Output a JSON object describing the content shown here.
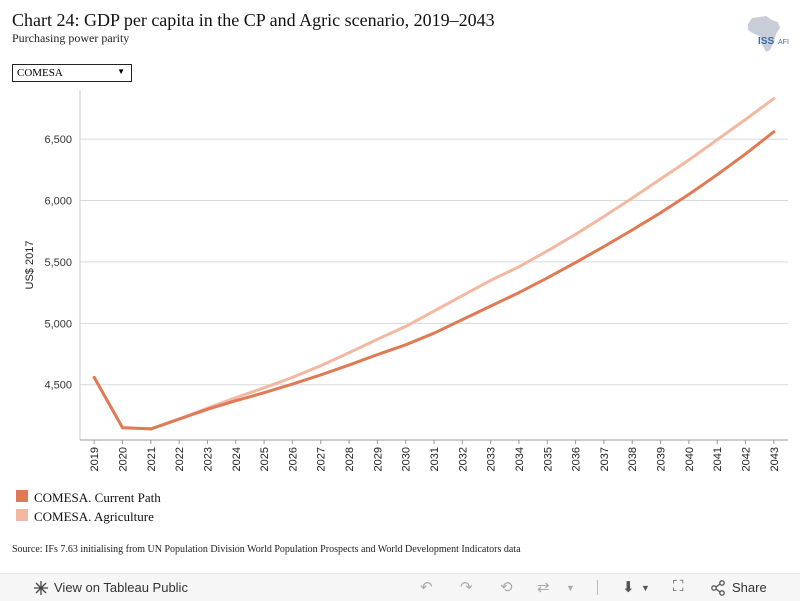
{
  "header": {
    "title": "Chart 24: GDP per capita in the CP and Agric scenario, 2019–2043",
    "subtitle": "Purchasing power parity",
    "logo_text": "ISS",
    "logo_suffix": "AFI"
  },
  "filter": {
    "selected": "COMESA"
  },
  "chart_data": {
    "type": "line",
    "title": "Chart 24: GDP per capita in the CP and Agric scenario, 2019–2043",
    "subtitle": "Purchasing power parity",
    "xlabel": "",
    "ylabel": "US$ 2017",
    "x": [
      2019,
      2020,
      2021,
      2022,
      2023,
      2024,
      2025,
      2026,
      2027,
      2028,
      2029,
      2030,
      2031,
      2032,
      2033,
      2034,
      2035,
      2036,
      2037,
      2038,
      2039,
      2040,
      2041,
      2042,
      2043
    ],
    "ylim": [
      4050,
      6900
    ],
    "yticks": [
      4500,
      5000,
      5500,
      6000,
      6500
    ],
    "ytick_labels": [
      "4,500",
      "5,000",
      "5,500",
      "6,000",
      "6,500"
    ],
    "grid": true,
    "legend_position": "bottom-left",
    "series": [
      {
        "name": "COMESA. Current Path",
        "color": "#e07a55",
        "values": [
          4560,
          4150,
          4140,
          4220,
          4300,
          4370,
          4435,
          4505,
          4580,
          4660,
          4745,
          4825,
          4920,
          5030,
          5140,
          5250,
          5370,
          5495,
          5625,
          5760,
          5900,
          6050,
          6210,
          6380,
          6560
        ]
      },
      {
        "name": "COMESA. Agriculture",
        "color": "#f2b8a2",
        "values": [
          4560,
          4150,
          4140,
          4220,
          4310,
          4395,
          4475,
          4560,
          4655,
          4760,
          4870,
          4975,
          5100,
          5225,
          5350,
          5460,
          5590,
          5725,
          5870,
          6020,
          6175,
          6330,
          6495,
          6660,
          6830
        ]
      }
    ]
  },
  "source": "Source: IFs 7.63 initialising from UN Population Division World Population Prospects and World Development Indicators data",
  "footer": {
    "view_label": "View on Tableau Public",
    "share_label": "Share"
  },
  "colors": {
    "current_path": "#e07a55",
    "agriculture": "#f2b8a2"
  }
}
